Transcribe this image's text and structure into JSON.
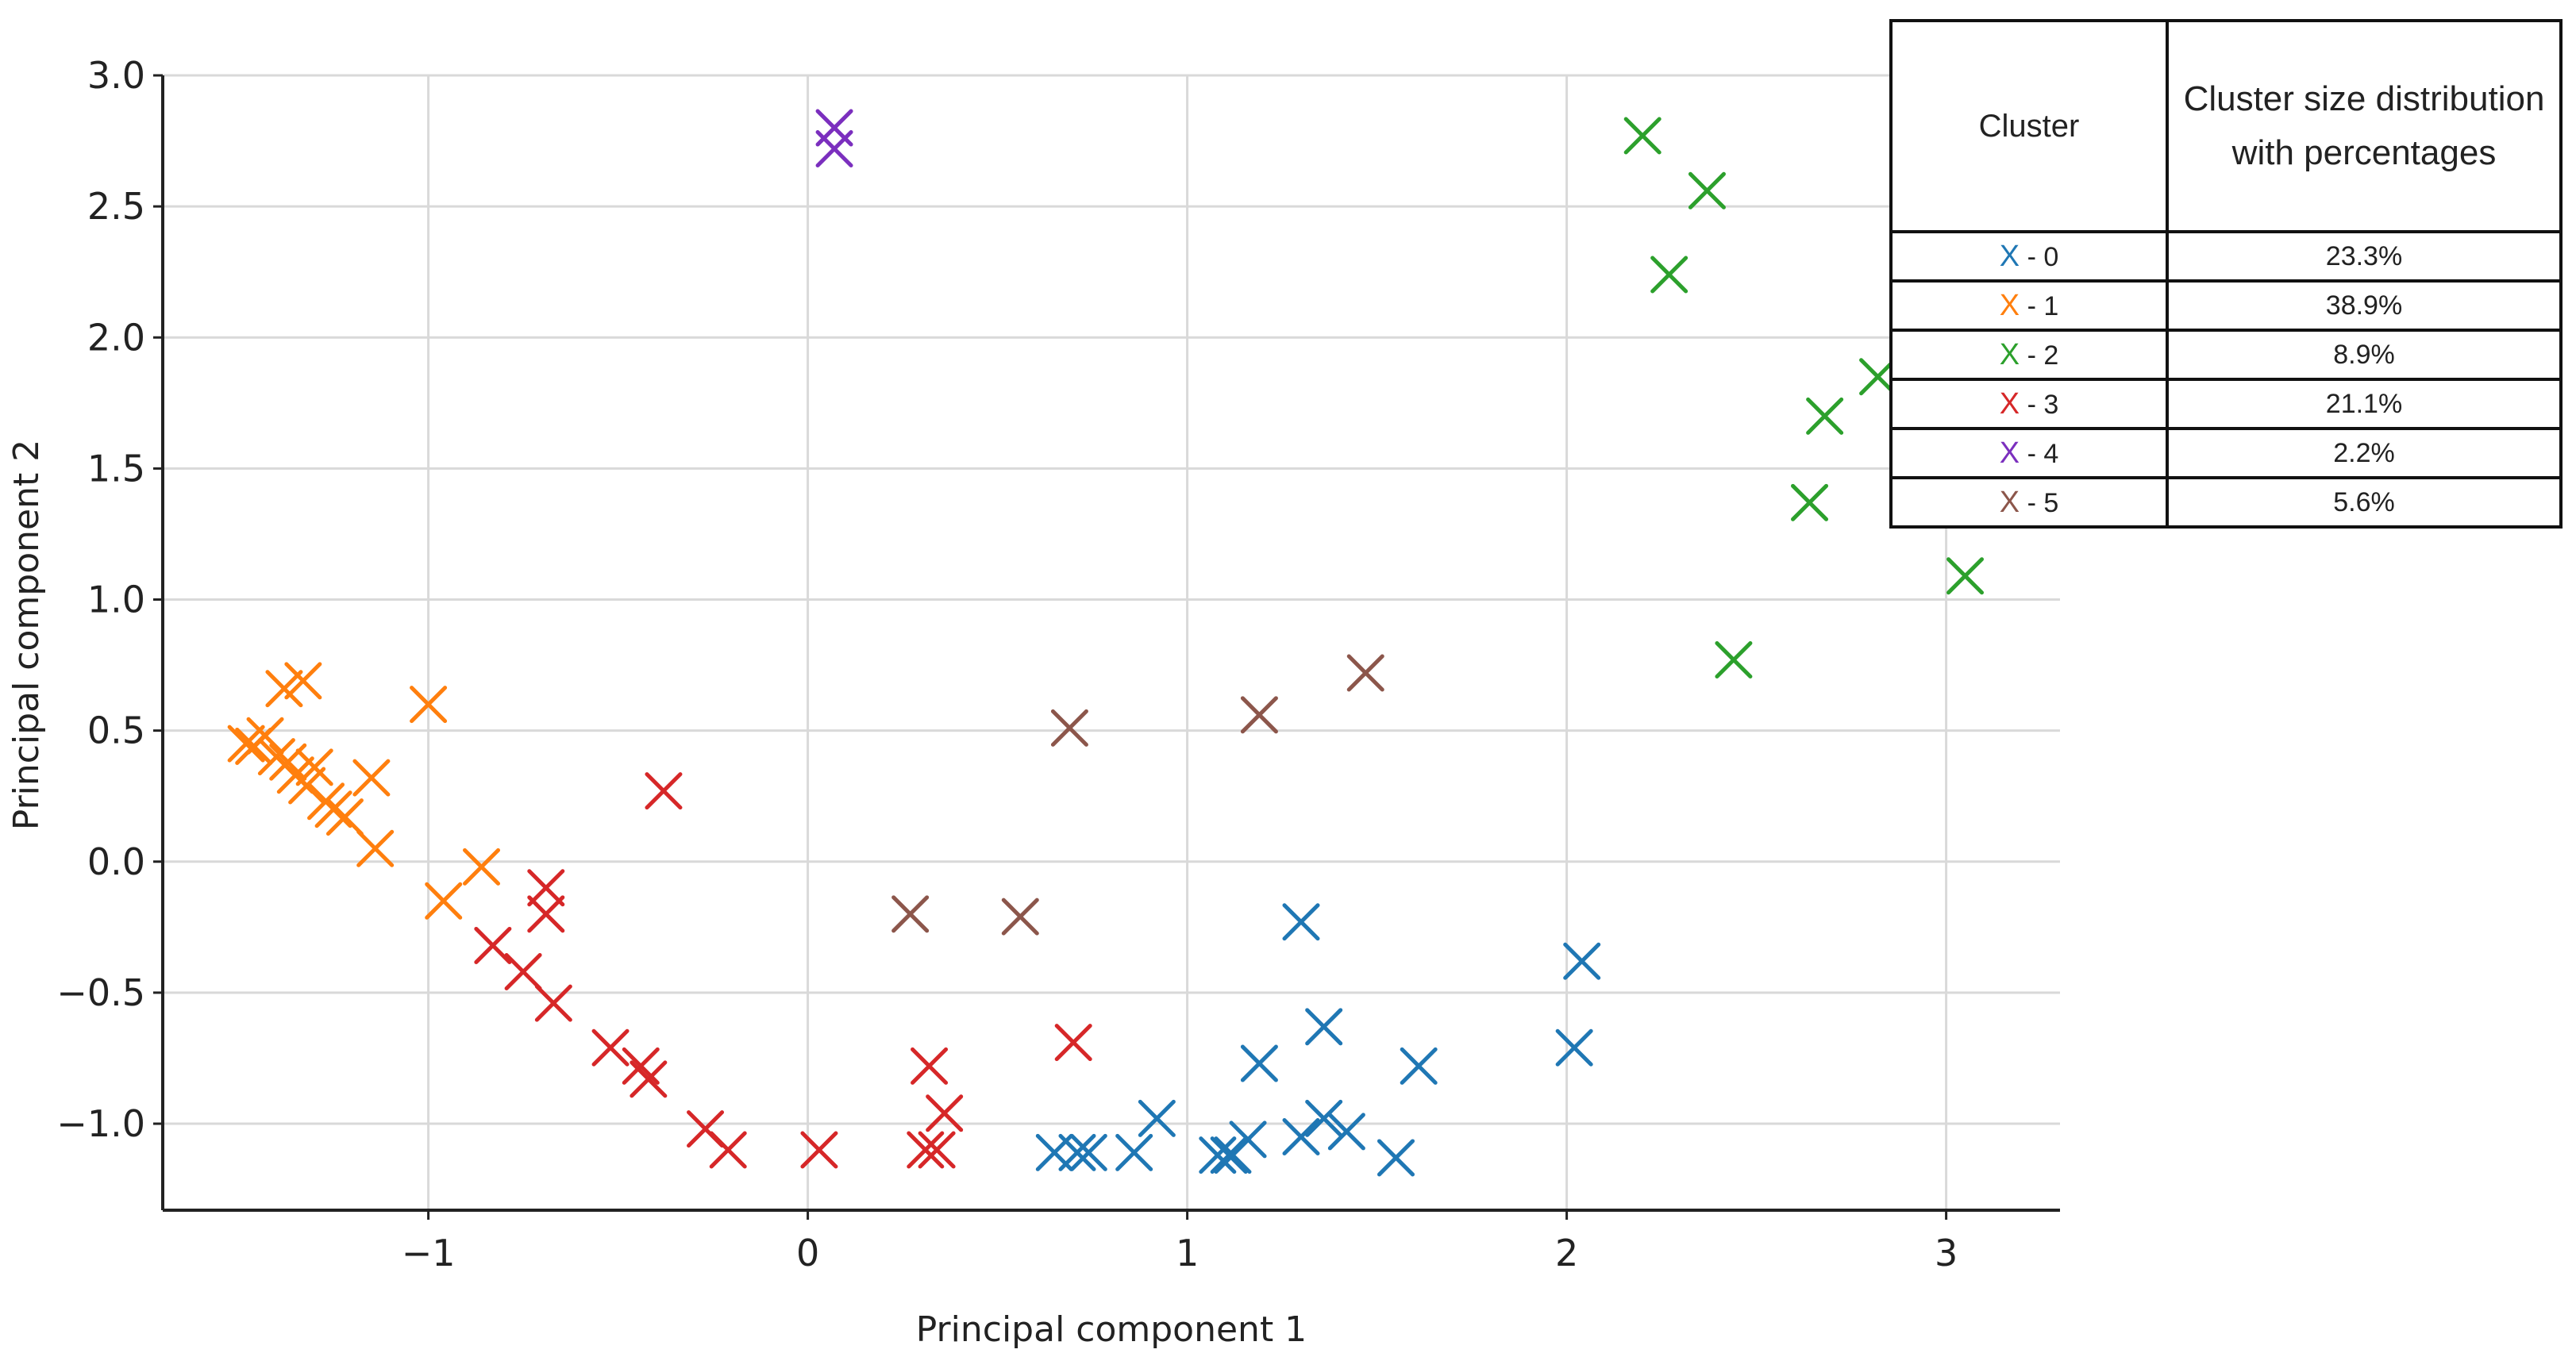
{
  "chart_data": {
    "type": "scatter",
    "xlabel": "Principal component 1",
    "ylabel": "Principal component 2",
    "xlim": [
      -1.7,
      3.3
    ],
    "ylim": [
      -1.33,
      3.0
    ],
    "xticks": [
      -1,
      0,
      1,
      2,
      3
    ],
    "xtick_labels": [
      "−1",
      "0",
      "1",
      "2",
      "3"
    ],
    "yticks": [
      3.0,
      2.5,
      2.0,
      1.5,
      1.0,
      0.5,
      0.0,
      -0.5,
      -1.0
    ],
    "ytick_labels": [
      "3.0",
      "2.5",
      "2.0",
      "1.5",
      "1.0",
      "0.5",
      "0.0",
      "−0.5",
      "−1.0"
    ],
    "grid": true,
    "marker": "x",
    "series": [
      {
        "name": "0",
        "color": "#1f77b4",
        "x": [
          0.65,
          0.71,
          0.74,
          0.86,
          0.92,
          1.08,
          1.11,
          1.12,
          1.16,
          1.19,
          1.3,
          1.3,
          1.36,
          1.36,
          1.42,
          1.55,
          1.61,
          2.02,
          2.04
        ],
        "y": [
          -1.11,
          -1.11,
          -1.11,
          -1.11,
          -0.98,
          -1.12,
          -1.12,
          -1.12,
          -1.06,
          -0.77,
          -0.23,
          -1.05,
          -0.63,
          -0.98,
          -1.03,
          -1.13,
          -0.78,
          -0.71,
          -0.38
        ]
      },
      {
        "name": "1",
        "color": "#ff7f0e",
        "x": [
          -1.48,
          -1.46,
          -1.43,
          -1.4,
          -1.38,
          -1.37,
          -1.35,
          -1.33,
          -1.32,
          -1.3,
          -1.27,
          -1.25,
          -1.22,
          -1.15,
          -1.14,
          -1.0,
          -0.96,
          -0.86
        ],
        "y": [
          0.45,
          0.44,
          0.48,
          0.4,
          0.66,
          0.38,
          0.33,
          0.69,
          0.29,
          0.36,
          0.23,
          0.2,
          0.17,
          0.32,
          0.05,
          0.6,
          -0.15,
          -0.02
        ]
      },
      {
        "name": "2",
        "color": "#2ca02c",
        "x": [
          2.2,
          2.27,
          2.37,
          2.44,
          2.64,
          2.68,
          2.82,
          3.05
        ],
        "y": [
          2.77,
          2.24,
          2.56,
          0.77,
          1.37,
          1.7,
          1.85,
          1.09
        ]
      },
      {
        "name": "3",
        "color": "#d62728",
        "x": [
          -0.83,
          -0.75,
          -0.69,
          -0.69,
          -0.67,
          -0.52,
          -0.44,
          -0.42,
          -0.38,
          -0.27,
          -0.21,
          0.03,
          0.31,
          0.32,
          0.34,
          0.36,
          0.7
        ],
        "y": [
          -0.32,
          -0.42,
          -0.1,
          -0.2,
          -0.54,
          -0.71,
          -0.78,
          -0.83,
          0.27,
          -1.02,
          -1.1,
          -1.1,
          -1.1,
          -0.78,
          -1.1,
          -0.96,
          -0.69
        ]
      },
      {
        "name": "4",
        "color": "#7b2fbe",
        "x": [
          0.07,
          0.07
        ],
        "y": [
          2.8,
          2.72
        ]
      },
      {
        "name": "5",
        "color": "#8c564b",
        "x": [
          0.27,
          0.56,
          0.69,
          1.19,
          1.47
        ],
        "y": [
          -0.2,
          -0.21,
          0.51,
          0.56,
          0.72
        ]
      }
    ]
  },
  "legend_table": {
    "header_cluster": "Cluster",
    "header_distribution": "Cluster size distribution with percentages",
    "rows": [
      {
        "marker": "X",
        "label": "- 0",
        "percent": "23.3%",
        "color": "#1f77b4"
      },
      {
        "marker": "X",
        "label": "- 1",
        "percent": "38.9%",
        "color": "#ff7f0e"
      },
      {
        "marker": "X",
        "label": "- 2",
        "percent": "8.9%",
        "color": "#2ca02c"
      },
      {
        "marker": "X",
        "label": "- 3",
        "percent": "21.1%",
        "color": "#d62728"
      },
      {
        "marker": "X",
        "label": "- 4",
        "percent": "2.2%",
        "color": "#7b2fbe"
      },
      {
        "marker": "X",
        "label": "- 5",
        "percent": "5.6%",
        "color": "#8c564b"
      }
    ]
  }
}
